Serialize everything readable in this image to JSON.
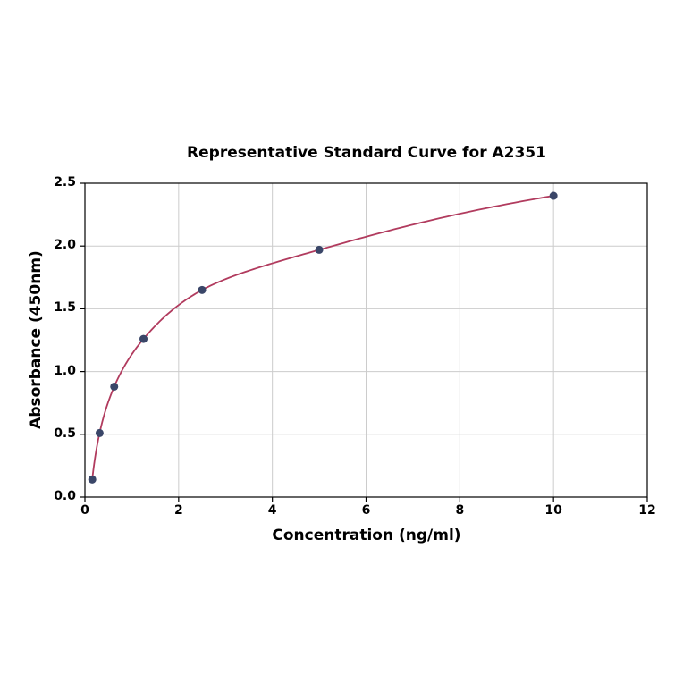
{
  "chart_data": {
    "type": "scatter",
    "title": "Representative Standard Curve for A2351",
    "xlabel": "Concentration (ng/ml)",
    "ylabel": "Absorbance (450nm)",
    "x": [
      0.156,
      0.313,
      0.625,
      1.25,
      2.5,
      5,
      10
    ],
    "y": [
      0.14,
      0.51,
      0.88,
      1.26,
      1.65,
      1.97,
      2.4
    ],
    "xlim": [
      0,
      12
    ],
    "ylim": [
      0,
      2.5
    ],
    "xticks": [
      0,
      2,
      4,
      6,
      8,
      10,
      12
    ],
    "xtick_labels": [
      "0",
      "2",
      "4",
      "6",
      "8",
      "10",
      "12"
    ],
    "yticks": [
      0,
      0.5,
      1,
      1.5,
      2,
      2.5
    ],
    "ytick_labels": [
      "0.0",
      "0.5",
      "1.0",
      "1.5",
      "2.0",
      "2.5"
    ],
    "grid": true,
    "legend_position": "none",
    "fit_style": "smooth fitted curve through all points",
    "curve_color": "#b13b5e",
    "point_color": "#3a4668",
    "grid_color": "#cccccc",
    "axis_color": "#000000"
  }
}
